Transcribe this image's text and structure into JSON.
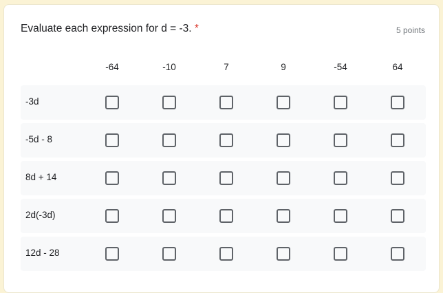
{
  "question": {
    "title": "Evaluate each expression for d = -3.",
    "required_marker": "*",
    "points": "5 points"
  },
  "columns": [
    "-64",
    "-10",
    "7",
    "9",
    "-54",
    "64"
  ],
  "rows": [
    "-3d",
    "-5d - 8",
    "8d + 14",
    "2d(-3d)",
    "12d - 28"
  ],
  "checked": []
}
